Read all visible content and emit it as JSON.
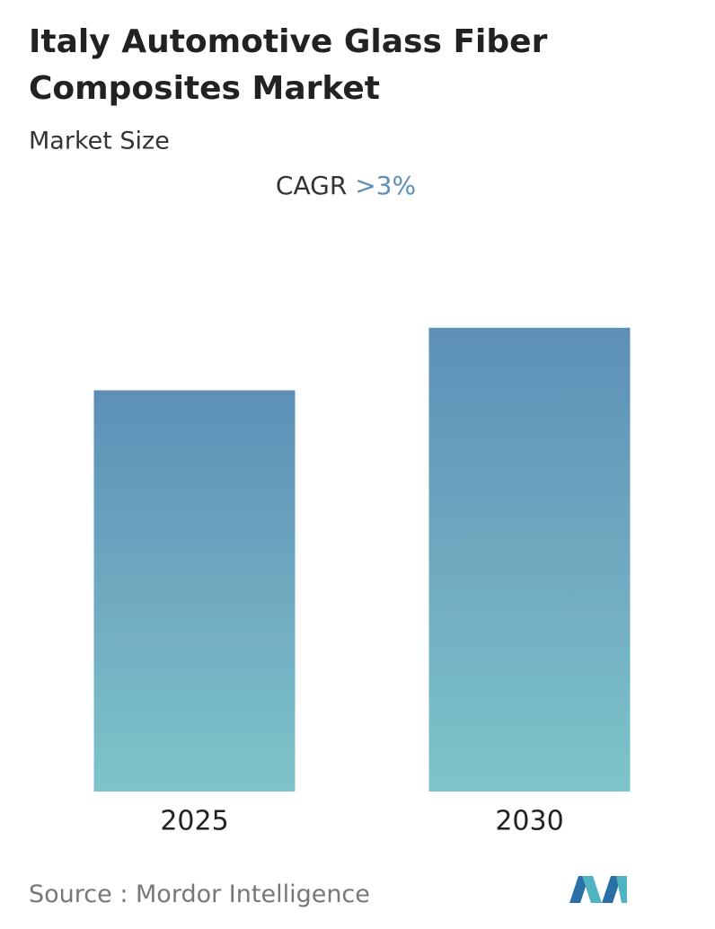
{
  "chart_data": {
    "type": "bar",
    "title": "Italy Automotive Glass Fiber Composites Market",
    "subtitle": "Market Size",
    "cagr_label": "CAGR",
    "cagr_value": ">3%",
    "categories": [
      "2025",
      "2030"
    ],
    "values": [
      77,
      89
    ],
    "ylim": [
      0,
      100
    ],
    "color_top": "#5d8fb7",
    "color_bottom": "#7fc4c9",
    "source_label": "Source :",
    "source": "Mordor Intelligence"
  }
}
